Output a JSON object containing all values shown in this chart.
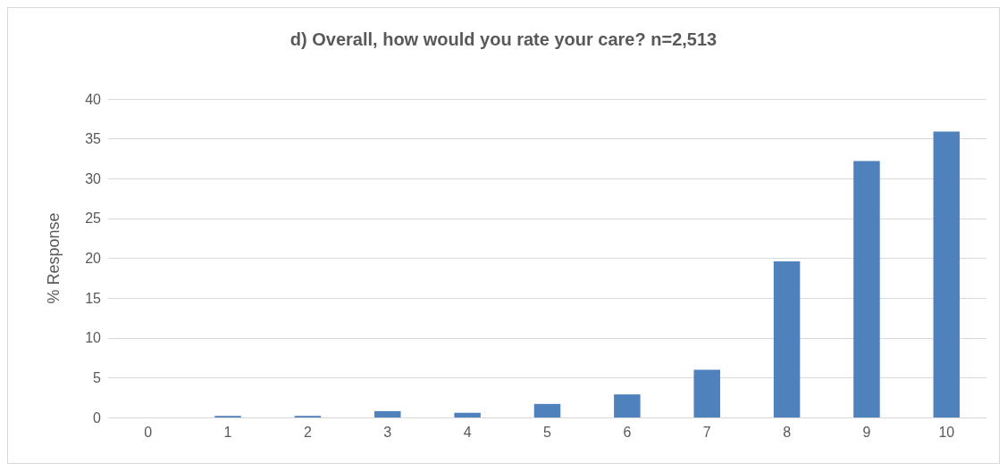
{
  "chart_data": {
    "type": "bar",
    "title": "d) Overall, how would you rate your care? n=2,513",
    "ylabel": "% Response",
    "categories": [
      "0",
      "1",
      "2",
      "3",
      "4",
      "5",
      "6",
      "7",
      "8",
      "9",
      "10"
    ],
    "values": [
      0,
      0.2,
      0.2,
      0.8,
      0.6,
      1.7,
      2.9,
      6.0,
      19.6,
      32.2,
      35.9
    ],
    "color": "#4f81bd",
    "ylim": [
      0,
      40
    ],
    "yticks": [
      0,
      5,
      10,
      15,
      20,
      25,
      30,
      35,
      40
    ],
    "grid": "y"
  }
}
